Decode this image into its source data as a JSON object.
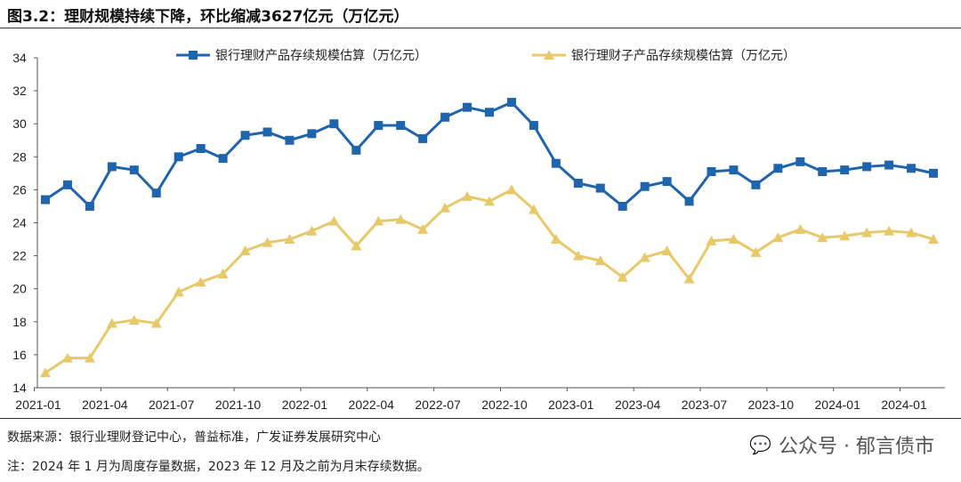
{
  "title": "图3.2：理财规模持续下降，环比缩减3627亿元（万亿元）",
  "source": "数据来源：银行业理财登记中心，普益标准，广发证券发展研究中心",
  "note": "注：2024 年 1 月为周度存量数据，2023 年 12 月及之前为月末存续数据。",
  "watermark": "公众号 · 郁言债市",
  "chart_data": {
    "type": "line",
    "ylim": [
      14,
      34
    ],
    "yticks": [
      14,
      16,
      18,
      20,
      22,
      24,
      26,
      28,
      30,
      32,
      34
    ],
    "x_tick_labels": [
      "2021-01",
      "2021-04",
      "2021-07",
      "2021-10",
      "2022-01",
      "2022-04",
      "2022-07",
      "2022-10",
      "2023-01",
      "2023-04",
      "2023-07",
      "2023-10",
      "2024-01",
      "2024-01"
    ],
    "legend_position": "top",
    "grid": false,
    "series": [
      {
        "name": "银行理财产品存续规模估算（万亿元）",
        "color": "#1f65ae",
        "marker": "square",
        "values": [
          25.4,
          26.3,
          25.0,
          27.4,
          27.2,
          25.8,
          28.0,
          28.5,
          27.9,
          29.3,
          29.5,
          29.0,
          29.4,
          30.0,
          28.4,
          29.9,
          29.9,
          29.1,
          30.4,
          31.0,
          30.7,
          31.3,
          29.9,
          27.6,
          26.4,
          26.1,
          25.0,
          26.2,
          26.5,
          25.3,
          27.1,
          27.2,
          26.3,
          27.3,
          27.7,
          27.1,
          27.2,
          27.4,
          27.5,
          27.3,
          27.0
        ]
      },
      {
        "name": "银行理财子产品存续规模估算（万亿元）",
        "color": "#e8c96a",
        "marker": "triangle",
        "values": [
          14.9,
          15.8,
          15.8,
          17.9,
          18.1,
          17.9,
          19.8,
          20.4,
          20.9,
          22.3,
          22.8,
          23.0,
          23.5,
          24.1,
          22.6,
          24.1,
          24.2,
          23.6,
          24.9,
          25.6,
          25.3,
          26.0,
          24.8,
          23.0,
          22.0,
          21.7,
          20.7,
          21.9,
          22.3,
          20.6,
          22.9,
          23.0,
          22.2,
          23.1,
          23.6,
          23.1,
          23.2,
          23.4,
          23.5,
          23.4,
          23.0
        ]
      }
    ]
  }
}
